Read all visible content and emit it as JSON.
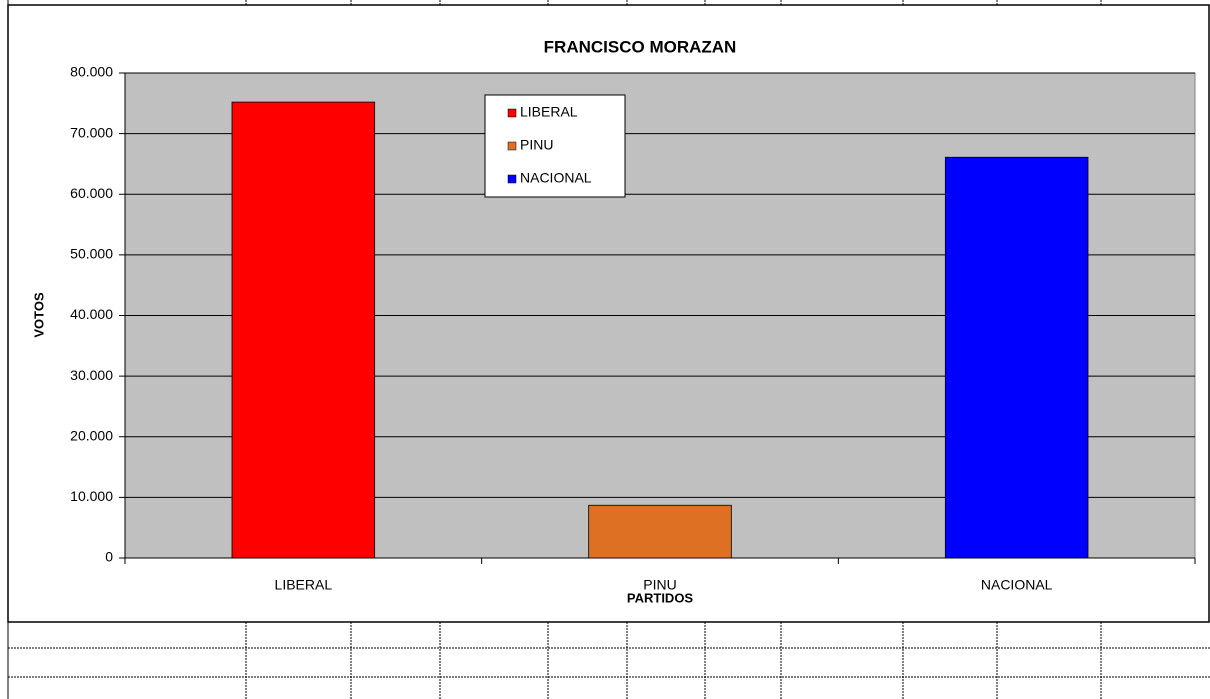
{
  "chart_data": {
    "type": "bar",
    "title": "FRANCISCO MORAZAN",
    "x_label": "PARTIDOS",
    "y_label": "VOTOS",
    "categories": [
      "LIBERAL",
      "PINU",
      "NACIONAL"
    ],
    "values": [
      75200,
      8700,
      66100
    ],
    "colors": [
      "#ff0000",
      "#dd7022",
      "#0000ff"
    ],
    "ylim": [
      0,
      80000
    ],
    "yticks": [
      0,
      {
        "value": 10000,
        "label": "10.000"
      },
      {
        "value": 20000,
        "label": "20.000"
      },
      {
        "value": 30000,
        "label": "30.000"
      },
      {
        "value": 40000,
        "label": "40.000"
      },
      {
        "value": 50000,
        "label": "50.000"
      },
      {
        "value": 60000,
        "label": "60.000"
      },
      {
        "value": 70000,
        "label": "70.000"
      },
      {
        "value": 80000,
        "label": "80.000"
      }
    ],
    "grid": true,
    "legend": "top-center",
    "plot_background": "#c0c0c0"
  }
}
